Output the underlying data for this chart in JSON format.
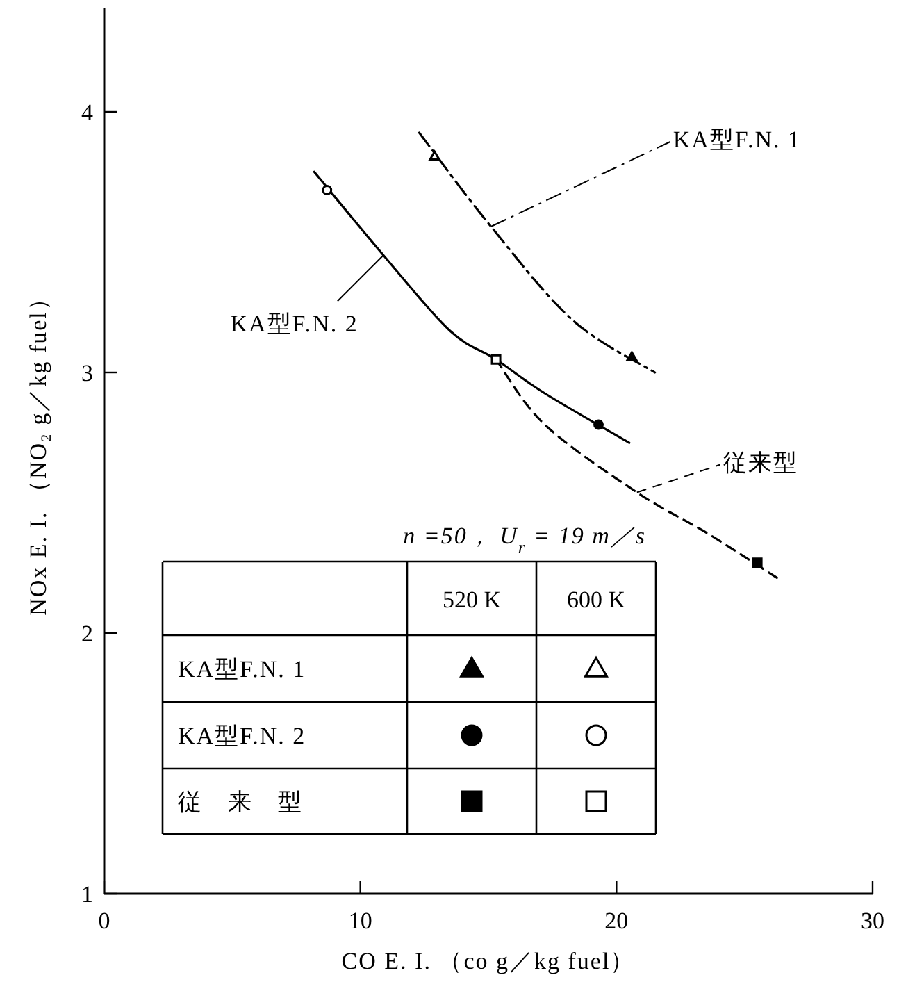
{
  "chart_data": {
    "type": "line",
    "xlabel": "CO E. I. （co g／kg fuel）",
    "ylabel": "NOx E. I. （NO₂ g／kg fuel）",
    "xlim": [
      0,
      30
    ],
    "ylim": [
      1,
      4.4
    ],
    "xticks": [
      0,
      10,
      20,
      30
    ],
    "yticks": [
      1,
      2,
      3,
      4
    ],
    "grid": false,
    "series": [
      {
        "type": "line",
        "name": "KA型F.N. 1",
        "line_style": "dashdot",
        "marker": "none",
        "color": "#000000",
        "x": [
          12.3,
          15.1,
          18.3,
          21.5
        ],
        "values": [
          3.92,
          3.56,
          3.2,
          3.0
        ]
      },
      {
        "type": "line",
        "name": "KA型F.N. 2",
        "line_style": "solid",
        "marker": "none",
        "color": "#000000",
        "x": [
          8.2,
          10.9,
          13.5,
          15.3,
          17.2,
          20.5
        ],
        "values": [
          3.77,
          3.45,
          3.16,
          3.05,
          2.92,
          2.73
        ]
      },
      {
        "type": "line",
        "name": "従来型",
        "line_style": "dashed",
        "marker": "none",
        "color": "#000000",
        "x": [
          15.3,
          17.2,
          20.8,
          23.6,
          26.3
        ],
        "values": [
          3.05,
          2.8,
          2.54,
          2.38,
          2.21
        ]
      },
      {
        "type": "scatter",
        "marker": "triangle",
        "color": "#000000",
        "x": [
          20.6
        ],
        "values": [
          3.06
        ]
      },
      {
        "type": "scatter",
        "marker": "triangle",
        "color": "#ffffff",
        "x": [
          12.9
        ],
        "values": [
          3.83
        ]
      },
      {
        "type": "scatter",
        "marker": "circle",
        "color": "#000000",
        "x": [
          19.3
        ],
        "values": [
          2.8
        ]
      },
      {
        "type": "scatter",
        "marker": "circle",
        "color": "#ffffff",
        "x": [
          8.7
        ],
        "values": [
          3.7
        ]
      },
      {
        "type": "scatter",
        "marker": "square",
        "color": "#000000",
        "x": [
          25.5
        ],
        "values": [
          2.27
        ]
      },
      {
        "type": "scatter",
        "marker": "square",
        "color": "#ffffff",
        "x": [
          15.3
        ],
        "values": [
          3.05
        ]
      }
    ],
    "annotations": [
      "n =50， U$_{r}$ = 19 m／s",
      "520 K",
      "600 K",
      "KA型F.N. 1",
      "KA型F.N. 2",
      "従　来　型"
    ]
  }
}
